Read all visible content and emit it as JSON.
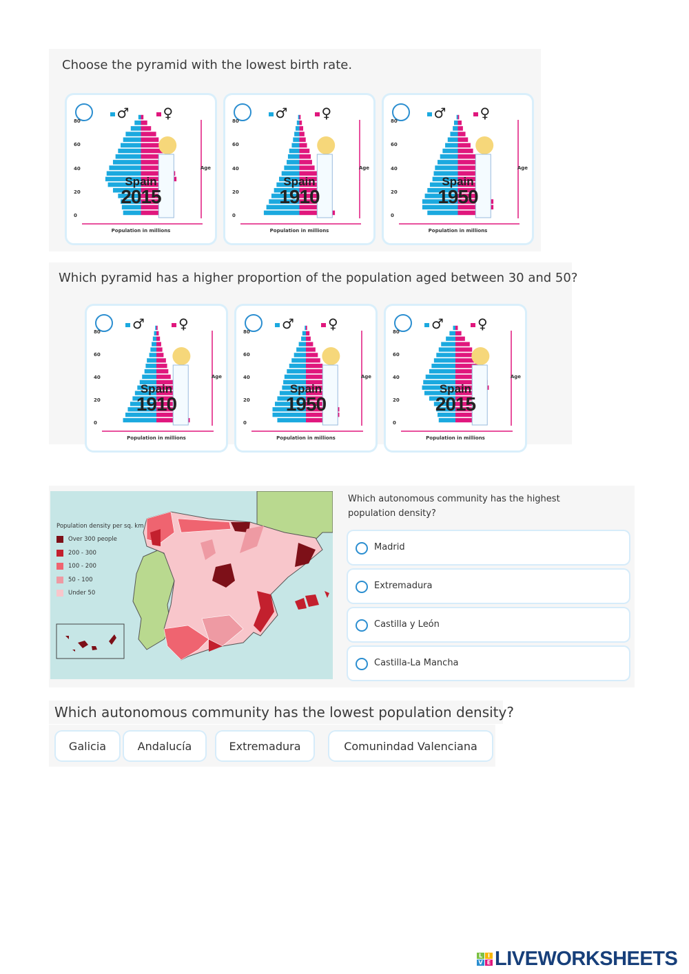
{
  "q1": {
    "title": "Choose the pyramid with the lowest birth rate.",
    "cards": [
      {
        "country": "Spain",
        "year": "2015"
      },
      {
        "country": "Spain",
        "year": "1910"
      },
      {
        "country": "Spain",
        "year": "1950"
      }
    ]
  },
  "q2": {
    "title": "Which pyramid has a higher proportion of the population aged between 30 and 50?",
    "cards": [
      {
        "country": "Spain",
        "year": "1910"
      },
      {
        "country": "Spain",
        "year": "1950"
      },
      {
        "country": "Spain",
        "year": "2015"
      }
    ]
  },
  "pyramid_labels": {
    "male": "♂",
    "female": "♀",
    "age": "Age",
    "population": "Population in millions",
    "ticks": [
      "80",
      "60",
      "40",
      "20",
      "0"
    ]
  },
  "colors": {
    "male": "#1ba9df",
    "female": "#e0177d",
    "accent": "#2b8ed0"
  },
  "map": {
    "legend_title": "Population density per sq. km",
    "legend": [
      {
        "label": "Over 300 people",
        "color": "#7d1018"
      },
      {
        "label": "200 - 300",
        "color": "#c3202e"
      },
      {
        "label": "100 - 200",
        "color": "#ef6470"
      },
      {
        "label": "50 - 100",
        "color": "#ee9aa3"
      },
      {
        "label": "Under 50",
        "color": "#f8c6cb"
      }
    ]
  },
  "q3": {
    "title": "Which autonomous community has the highest population density?",
    "options": [
      "Madrid",
      "Extremadura",
      "Castilla y León",
      "Castilla-La Mancha"
    ]
  },
  "q4": {
    "title": "Which autonomous community has the lowest population density?",
    "options": [
      "Galicia",
      "Andalucía",
      "Extremadura",
      "Comunindad Valenciana"
    ]
  },
  "logo": {
    "text": "LIVEWORKSHEETS",
    "blocks": [
      "L",
      "I",
      "V",
      "E"
    ]
  }
}
